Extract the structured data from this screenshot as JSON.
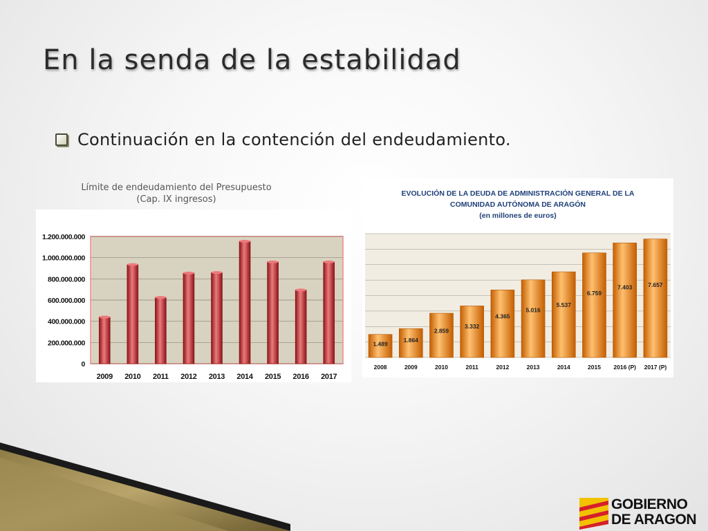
{
  "slide": {
    "title": "En la senda de la estabilidad",
    "bullet": "Continuación en la contención del endeudamiento."
  },
  "logo": {
    "line1": "GOBIERNO",
    "line2": "DE ARAGON"
  },
  "chart_data": [
    {
      "type": "bar",
      "title_lines": [
        "Límite de endeudamiento del Presupuesto",
        "(Cap. IX ingresos)"
      ],
      "categories": [
        "2009",
        "2010",
        "2011",
        "2012",
        "2013",
        "2014",
        "2015",
        "2016",
        "2017"
      ],
      "values": [
        440000000,
        935000000,
        625000000,
        855000000,
        860000000,
        1155000000,
        960000000,
        695000000,
        960000000
      ],
      "ylim": [
        0,
        1200000000
      ],
      "yticks": [
        0,
        200000000,
        400000000,
        600000000,
        800000000,
        1000000000,
        1200000000
      ],
      "ytick_labels": [
        "0",
        "200.000.000",
        "400.000.000",
        "600.000.000",
        "800.000.000",
        "1.000.000.000",
        "1.200.000.000"
      ],
      "grid": true,
      "colors": {
        "bar": "#c8262b",
        "bar_dark": "#8a1518",
        "bar_light": "#ec7a7c",
        "plot_bg": "#d8d3c0",
        "plot_border": "#f0a0a0"
      }
    },
    {
      "type": "bar",
      "title_lines": [
        "EVOLUCIÓN DE LA DEUDA DE ADMINISTRACIÓN GENERAL DE LA",
        "COMUNIDAD AUTÓNOMA DE ARAGÓN",
        "(en millones de euros)"
      ],
      "categories": [
        "2008",
        "2009",
        "2010",
        "2011",
        "2012",
        "2013",
        "2014",
        "2015",
        "2016 (P)",
        "2017 (P)"
      ],
      "values": [
        1489,
        1864,
        2859,
        3332,
        4365,
        5016,
        5537,
        6759,
        7403,
        7657
      ],
      "value_labels": [
        "1.489",
        "1.864",
        "2.859",
        "3.332",
        "4.365",
        "5.016",
        "5.537",
        "6.759",
        "7.403",
        "7.657"
      ],
      "ylim": [
        0,
        8000
      ],
      "grid": true,
      "colors": {
        "bar": "#f08a1c",
        "bar_dark": "#c45e00",
        "bar_light": "#ffc070",
        "plot_bg": "#f1ede2",
        "title": "#1e3f78"
      }
    }
  ]
}
